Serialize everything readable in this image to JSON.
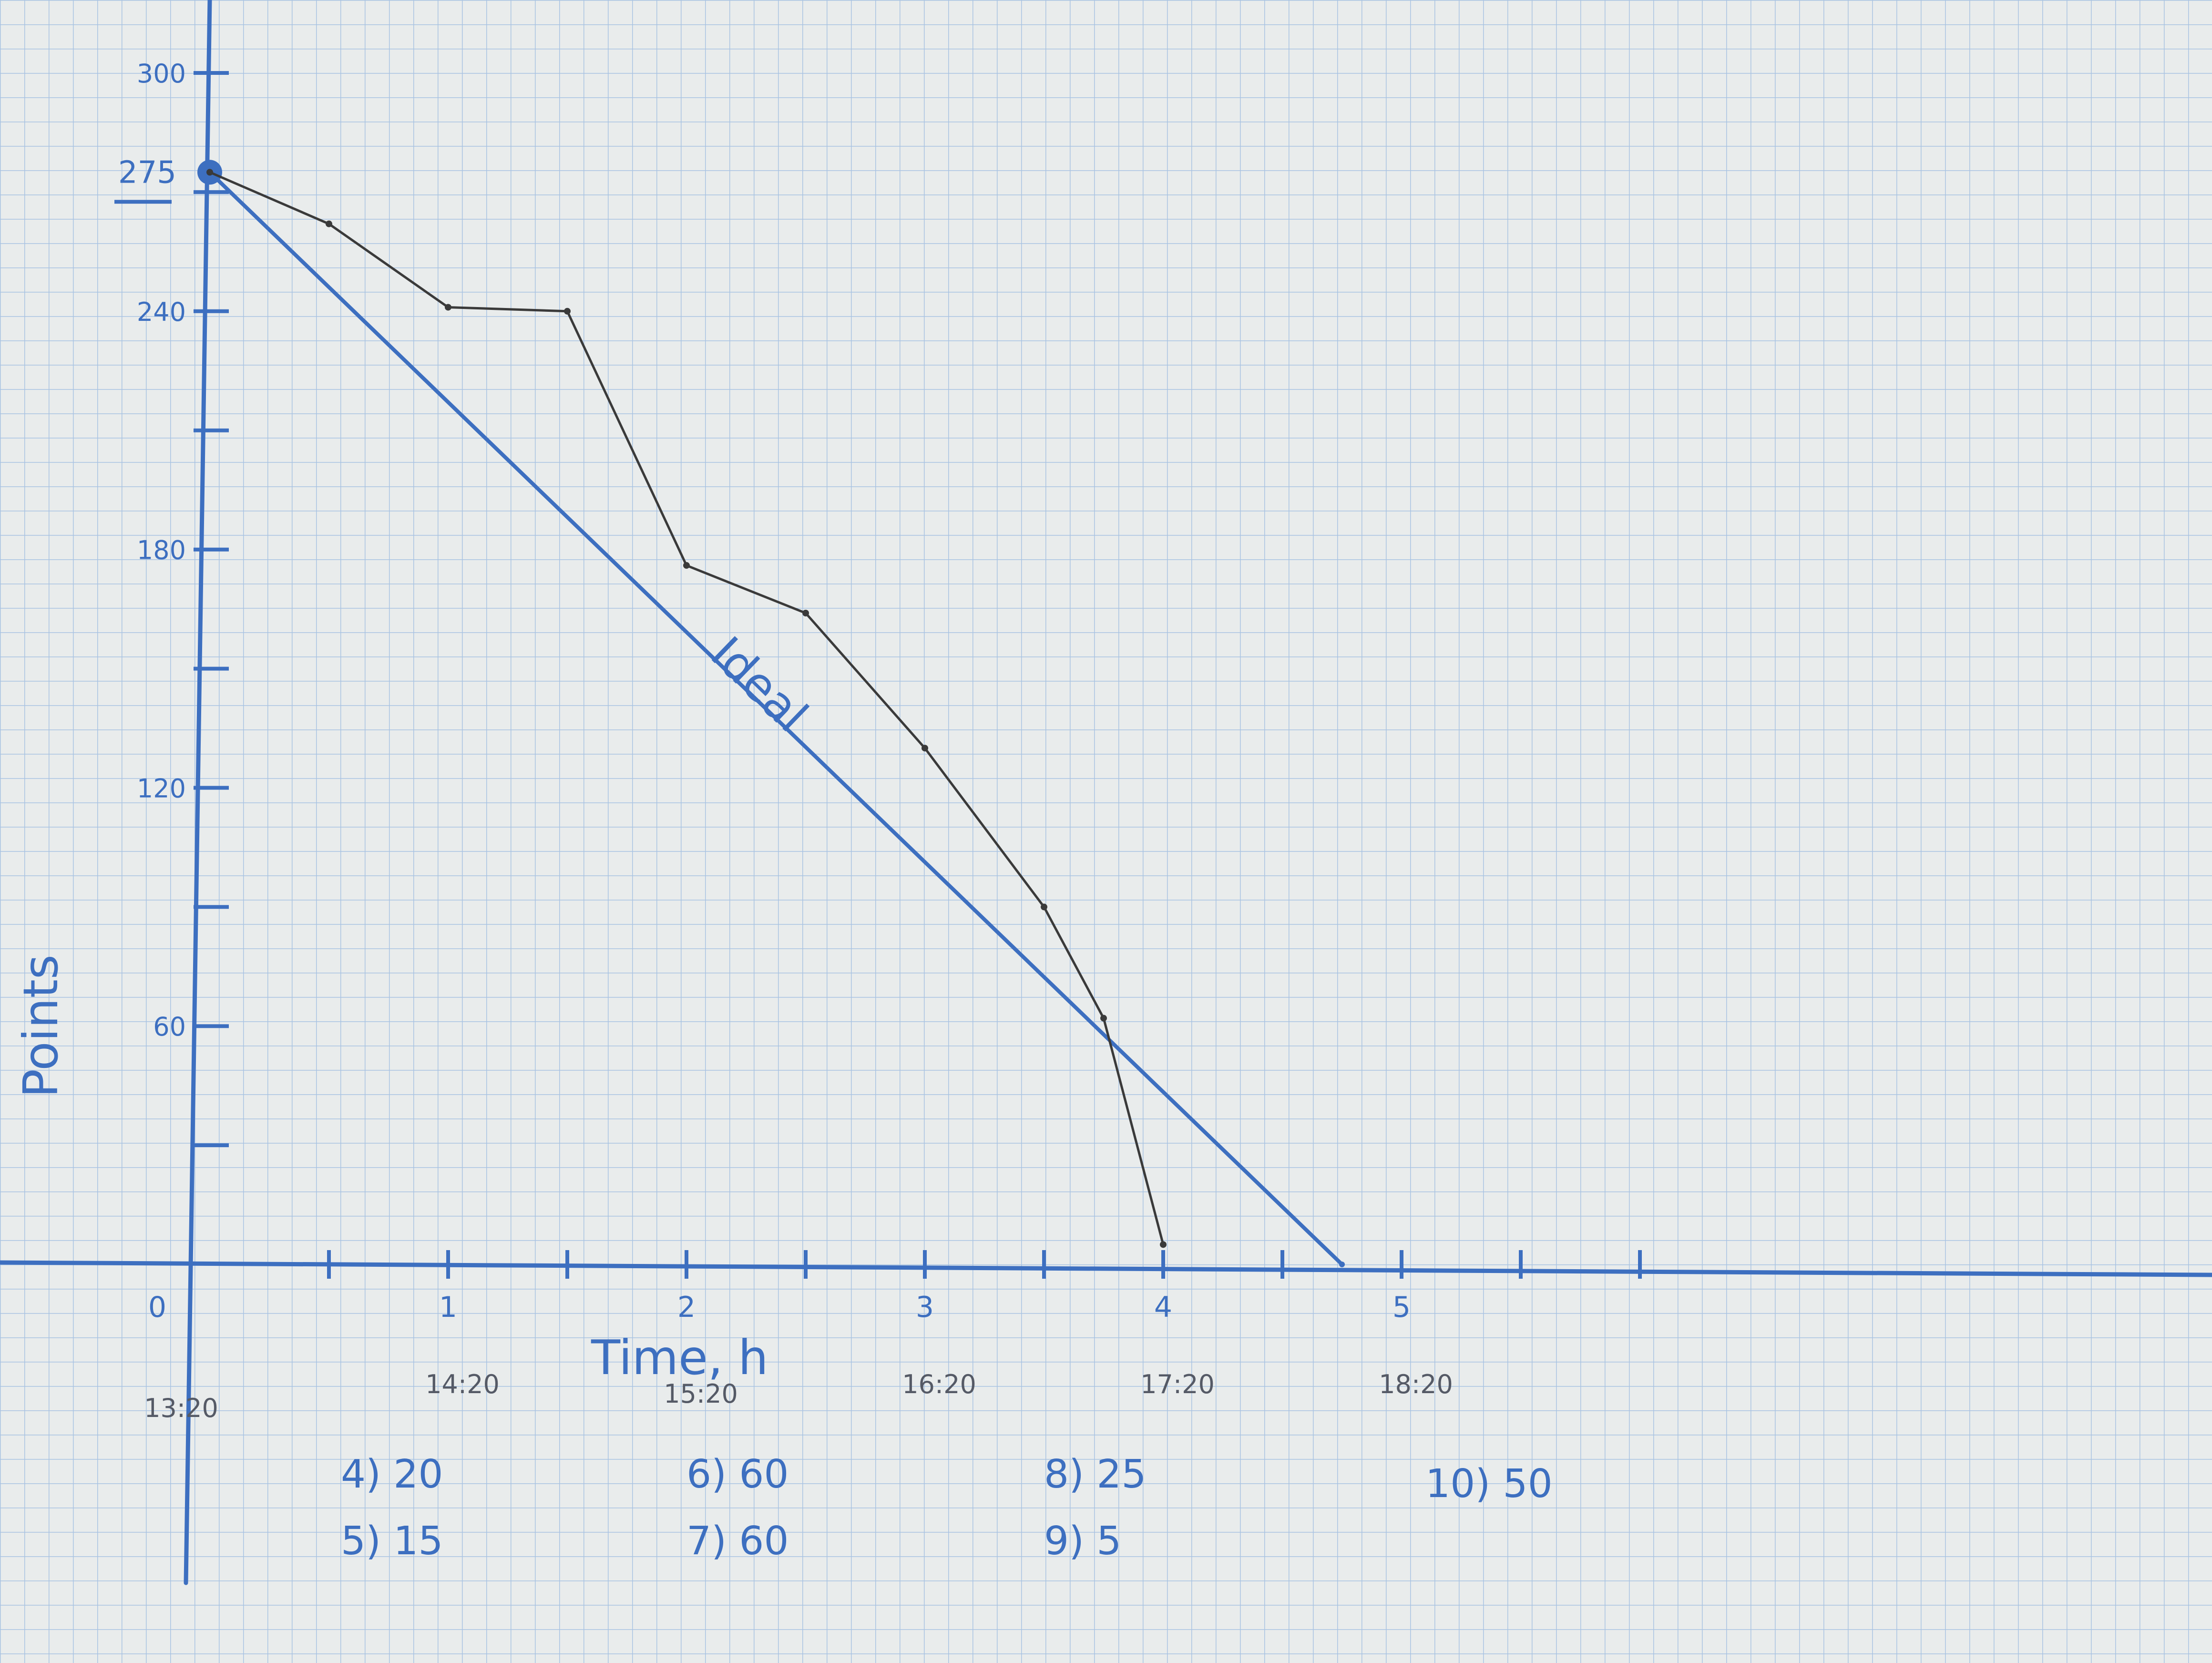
{
  "chart_data": {
    "type": "line",
    "xlabel": "Time, h",
    "ylabel": "Points",
    "xlim": [
      0,
      5
    ],
    "ylim": [
      0,
      300
    ],
    "x_ticks": [
      0,
      1,
      2,
      3,
      4,
      5
    ],
    "x_tick_labels": [
      "0",
      "1",
      "2",
      "3",
      "4",
      "5"
    ],
    "x_clock_labels": [
      "13:20",
      "14:20",
      "15:20",
      "16:20",
      "17:20",
      "18:20"
    ],
    "y_ticks": [
      60,
      120,
      180,
      240,
      300
    ],
    "y_tick_labels": [
      "60",
      "120",
      "180",
      "240",
      "300"
    ],
    "start_value_label": "275",
    "grid": true,
    "series": [
      {
        "name": "Ideal",
        "color": "#3d6fc0",
        "x": [
          0,
          4.75
        ],
        "y": [
          275,
          0
        ]
      },
      {
        "name": "",
        "color": "#3a3a3a",
        "x": [
          0,
          0.5,
          1,
          1.5,
          2,
          2.5,
          3,
          3.5,
          3.75,
          4
        ],
        "y": [
          275,
          262,
          241,
          240,
          176,
          164,
          130,
          90,
          62,
          5
        ]
      }
    ],
    "notes": [
      "4) 20",
      "5) 15",
      "6) 60",
      "7) 60",
      "8) 25",
      "9) 5",
      "10) 50"
    ]
  }
}
